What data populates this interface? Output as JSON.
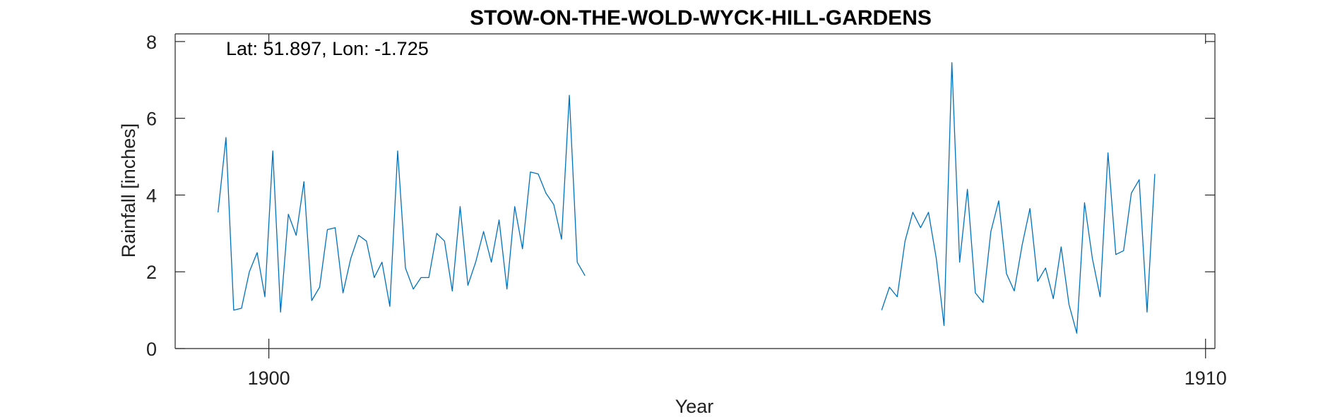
{
  "chart_data": {
    "type": "line",
    "title": "STOW-ON-THE-WOLD-WYCK-HILL-GARDENS",
    "annotation": "Lat: 51.897, Lon: -1.725",
    "xlabel": "Year",
    "ylabel": "Rainfall [inches]",
    "xlim": [
      1899,
      1910.1
    ],
    "ylim": [
      0,
      8.2
    ],
    "xticks": [
      1900,
      1910
    ],
    "xtick_labels": [
      "1900",
      "1910"
    ],
    "yticks": [
      0,
      2,
      4,
      6,
      8
    ],
    "ytick_labels": [
      "0",
      "2",
      "4",
      "6",
      "8"
    ],
    "grid": false,
    "colors": {
      "series": "#0072BD",
      "axis": "#262626"
    },
    "series": [
      {
        "values": [
          [
            1899.458,
            3.55
          ],
          [
            1899.542,
            5.5
          ],
          [
            1899.625,
            1.0
          ],
          [
            1899.708,
            1.05
          ],
          [
            1899.792,
            2.0
          ],
          [
            1899.875,
            2.5
          ],
          [
            1899.958,
            1.35
          ],
          [
            1900.042,
            5.15
          ],
          [
            1900.125,
            0.95
          ],
          [
            1900.208,
            3.5
          ],
          [
            1900.292,
            2.95
          ],
          [
            1900.375,
            4.35
          ],
          [
            1900.458,
            1.25
          ],
          [
            1900.542,
            1.6
          ],
          [
            1900.625,
            3.1
          ],
          [
            1900.708,
            3.15
          ],
          [
            1900.792,
            1.45
          ],
          [
            1900.875,
            2.35
          ],
          [
            1900.958,
            2.95
          ],
          [
            1901.042,
            2.8
          ],
          [
            1901.125,
            1.85
          ],
          [
            1901.208,
            2.25
          ],
          [
            1901.292,
            1.1
          ],
          [
            1901.375,
            5.15
          ],
          [
            1901.458,
            2.1
          ],
          [
            1901.542,
            1.55
          ],
          [
            1901.625,
            1.85
          ],
          [
            1901.708,
            1.85
          ],
          [
            1901.792,
            3.0
          ],
          [
            1901.875,
            2.8
          ],
          [
            1901.958,
            1.5
          ],
          [
            1902.042,
            3.7
          ],
          [
            1902.125,
            1.65
          ],
          [
            1902.208,
            2.25
          ],
          [
            1902.292,
            3.05
          ],
          [
            1902.375,
            2.25
          ],
          [
            1902.458,
            3.35
          ],
          [
            1902.542,
            1.55
          ],
          [
            1902.625,
            3.7
          ],
          [
            1902.708,
            2.6
          ],
          [
            1902.792,
            4.6
          ],
          [
            1902.875,
            4.55
          ],
          [
            1902.958,
            4.05
          ],
          [
            1903.042,
            3.75
          ],
          [
            1903.125,
            2.85
          ],
          [
            1903.208,
            6.6
          ],
          [
            1903.292,
            2.25
          ],
          [
            1903.375,
            1.9
          ],
          [
            null,
            null
          ],
          [
            1906.542,
            1.0
          ],
          [
            1906.625,
            1.6
          ],
          [
            1906.708,
            1.35
          ],
          [
            1906.792,
            2.8
          ],
          [
            1906.875,
            3.55
          ],
          [
            1906.958,
            3.15
          ],
          [
            1907.042,
            3.55
          ],
          [
            1907.125,
            2.35
          ],
          [
            1907.208,
            0.6
          ],
          [
            1907.292,
            7.45
          ],
          [
            1907.375,
            2.25
          ],
          [
            1907.458,
            4.15
          ],
          [
            1907.542,
            1.45
          ],
          [
            1907.625,
            1.2
          ],
          [
            1907.708,
            3.05
          ],
          [
            1907.792,
            3.85
          ],
          [
            1907.875,
            1.95
          ],
          [
            1907.958,
            1.5
          ],
          [
            1908.042,
            2.7
          ],
          [
            1908.125,
            3.65
          ],
          [
            1908.208,
            1.75
          ],
          [
            1908.292,
            2.1
          ],
          [
            1908.375,
            1.3
          ],
          [
            1908.458,
            2.65
          ],
          [
            1908.542,
            1.15
          ],
          [
            1908.625,
            0.4
          ],
          [
            1908.708,
            3.8
          ],
          [
            1908.792,
            2.35
          ],
          [
            1908.875,
            1.35
          ],
          [
            1908.958,
            5.1
          ],
          [
            1909.042,
            2.45
          ],
          [
            1909.125,
            2.55
          ],
          [
            1909.208,
            4.05
          ],
          [
            1909.292,
            4.4
          ],
          [
            1909.375,
            0.95
          ],
          [
            1909.458,
            4.55
          ]
        ]
      }
    ]
  }
}
